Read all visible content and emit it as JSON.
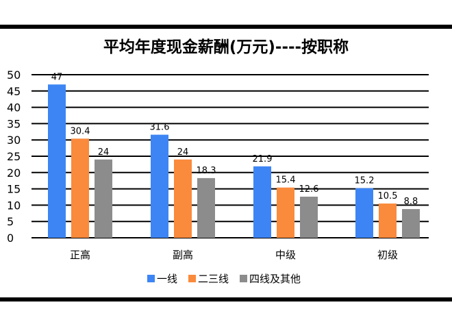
{
  "chart_data": {
    "type": "bar",
    "title": "平均年度现金薪酬(万元)----按职称",
    "categories": [
      "正高",
      "副高",
      "中级",
      "初级"
    ],
    "series": [
      {
        "name": "一线",
        "values": [
          47,
          31.6,
          21.9,
          15.2
        ],
        "labels": [
          "47",
          "31.6",
          "21.9",
          "15.2"
        ],
        "color": "#3d85f4"
      },
      {
        "name": "二三线",
        "values": [
          30.4,
          24,
          15.4,
          10.5
        ],
        "labels": [
          "30.4",
          "24",
          "15.4",
          "10.5"
        ],
        "color": "#fa8a3c"
      },
      {
        "name": "四线及其他",
        "values": [
          24,
          18.3,
          12.6,
          8.8
        ],
        "labels": [
          "24",
          "18.3",
          "12.6",
          "8.8"
        ],
        "color": "#8c8c8c"
      }
    ],
    "ylim": [
      0,
      50
    ],
    "yticks": [
      0,
      5,
      10,
      15,
      20,
      25,
      30,
      35,
      40,
      45,
      50
    ],
    "grid": true,
    "legend": "bottom-center"
  }
}
